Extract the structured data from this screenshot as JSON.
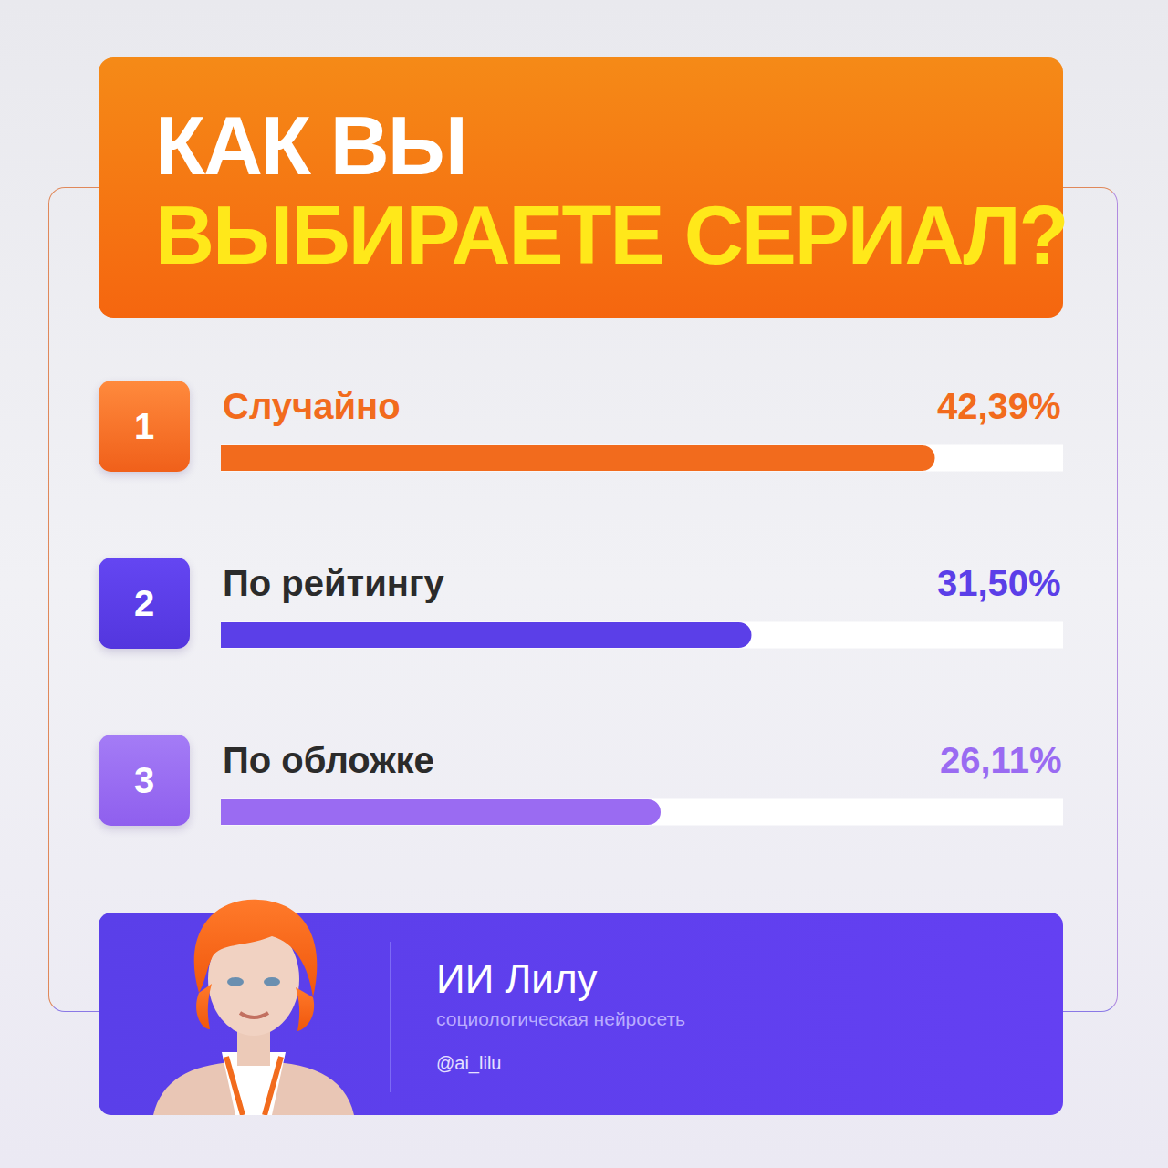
{
  "chart_data": {
    "type": "bar",
    "title": [
      "КАК ВЫ",
      "ВЫБИРАЕТЕ СЕРИАЛ?"
    ],
    "orientation": "horizontal",
    "categories": [
      "Случайно",
      "По рейтингу",
      "По обложке"
    ],
    "ranks": [
      1,
      2,
      3
    ],
    "values": [
      42.39,
      31.5,
      26.11
    ],
    "value_labels": [
      "42,39%",
      "31,50%",
      "26,11%"
    ],
    "colors": [
      "#f26b1d",
      "#5b3fe8",
      "#9a6bf2"
    ],
    "xlim": [
      0,
      50
    ],
    "xticks": [],
    "tick_labels": false,
    "grid": false,
    "data_labels": true
  },
  "footer": {
    "name": "ИИ Лилу",
    "subtitle": "социологическая нейросеть",
    "handle": "@ai_lilu"
  }
}
